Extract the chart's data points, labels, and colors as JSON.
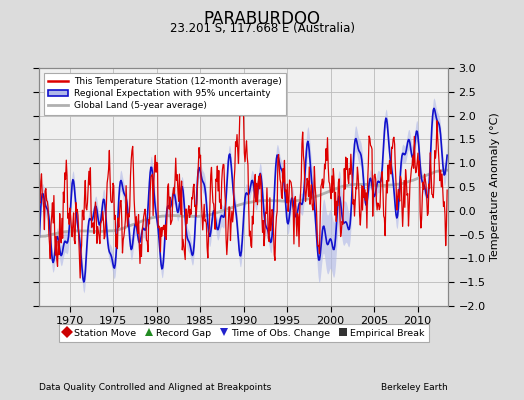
{
  "title": "PARABURDOO",
  "subtitle": "23.201 S, 117.668 E (Australia)",
  "ylabel": "Temperature Anomaly (°C)",
  "footer_left": "Data Quality Controlled and Aligned at Breakpoints",
  "footer_right": "Berkeley Earth",
  "xlim": [
    1966.5,
    2013.5
  ],
  "ylim": [
    -2.0,
    3.0
  ],
  "yticks": [
    -2,
    -1.5,
    -1,
    -0.5,
    0,
    0.5,
    1,
    1.5,
    2,
    2.5,
    3
  ],
  "xticks": [
    1970,
    1975,
    1980,
    1985,
    1990,
    1995,
    2000,
    2005,
    2010
  ],
  "bg_color": "#dcdcdc",
  "plot_bg_color": "#f0f0f0",
  "grid_color": "#bbbbbb",
  "station_color": "#dd0000",
  "regional_color": "#1111cc",
  "regional_fill_color": "#b0b8e8",
  "global_color": "#b0b0b0",
  "legend_items": [
    {
      "label": "This Temperature Station (12-month average)",
      "color": "#dd0000"
    },
    {
      "label": "Regional Expectation with 95% uncertainty",
      "color": "#1111cc",
      "fill": "#b0b8e8"
    },
    {
      "label": "Global Land (5-year average)",
      "color": "#b0b0b0"
    }
  ],
  "bottom_legend": [
    {
      "marker": "D",
      "color": "#cc0000",
      "label": "Station Move"
    },
    {
      "marker": "^",
      "color": "#228B22",
      "label": "Record Gap"
    },
    {
      "marker": "v",
      "color": "#2222cc",
      "label": "Time of Obs. Change"
    },
    {
      "marker": "s",
      "color": "#333333",
      "label": "Empirical Break"
    }
  ]
}
